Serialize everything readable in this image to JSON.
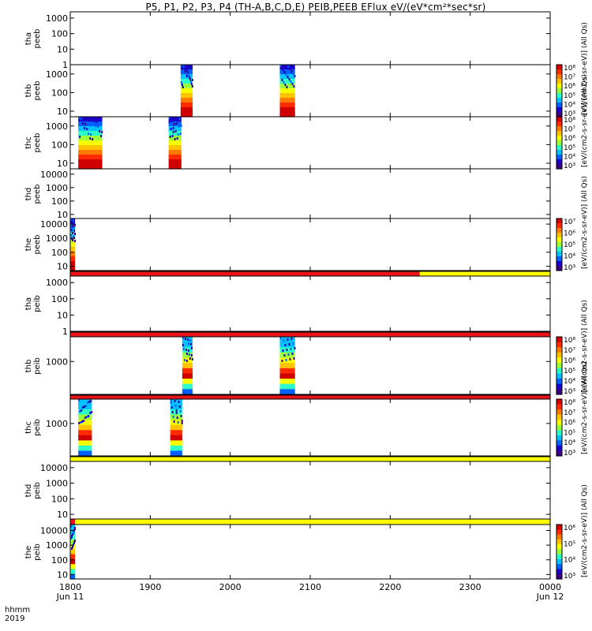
{
  "title": "P5, P1, P2, P3, P4 (TH-A,B,C,D,E) PEIB,PEEB EFlux eV/(eV*cm²*sec*sr)",
  "corner_labels": {
    "line1": "hhmm",
    "line2": "2019"
  },
  "x_axis": {
    "ticks": [
      {
        "label": "1800",
        "sub": "Jun 11",
        "t": 1800
      },
      {
        "label": "1900",
        "sub": "",
        "t": 1900
      },
      {
        "label": "2000",
        "sub": "",
        "t": 2000
      },
      {
        "label": "2100",
        "sub": "",
        "t": 2100
      },
      {
        "label": "2200",
        "sub": "",
        "t": 2200
      },
      {
        "label": "2300",
        "sub": "",
        "t": 2300
      },
      {
        "label": "0000",
        "sub": "Jun 12",
        "t": 2400
      }
    ],
    "range": [
      1800,
      2400
    ]
  },
  "chart_data": {
    "type": "heatmap",
    "panels": [
      {
        "name": "tha_peeb",
        "ylabel": [
          "tha",
          "peeb"
        ],
        "yticks": [
          "1000",
          "100",
          "10",
          "1"
        ],
        "ylog": [
          0,
          3.4
        ],
        "strip": null,
        "blocks": [],
        "colorbar": null
      },
      {
        "name": "thb_peeb",
        "ylabel": [
          "thb",
          "peeb"
        ],
        "yticks": [
          "1000",
          "100",
          "10"
        ],
        "ylog": [
          0.7,
          3.5
        ],
        "strip": null,
        "blocks": [
          {
            "t0": 1938,
            "t1": 1953
          },
          {
            "t0": 2062,
            "t1": 2081
          }
        ],
        "colorbar": {
          "ticks": [
            "10⁸",
            "10⁷",
            "10⁶",
            "10⁵",
            "10⁴",
            "10³"
          ],
          "label": "[eV/(cm2-s-sr-eV)] (All Qs)"
        }
      },
      {
        "name": "thc_peeb",
        "ylabel": [
          "thc",
          "peeb"
        ],
        "yticks": [
          "1000",
          "100",
          "10"
        ],
        "ylog": [
          0.7,
          3.5
        ],
        "strip": null,
        "blocks": [
          {
            "t0": 1810,
            "t1": 1840
          },
          {
            "t0": 1923,
            "t1": 1939
          }
        ],
        "colorbar": {
          "ticks": [
            "10⁸",
            "10⁷",
            "10⁶",
            "10⁵",
            "10⁴",
            "10³"
          ],
          "label": "[eV/(cm2-s-sr-eV)] (All Qs)"
        }
      },
      {
        "name": "thd_peeb",
        "ylabel": [
          "thd",
          "peeb"
        ],
        "yticks": [
          "10000",
          "1000",
          "100",
          "10"
        ],
        "ylog": [
          0.7,
          4.4
        ],
        "strip": null,
        "blocks": [],
        "colorbar": null
      },
      {
        "name": "the_peeb",
        "ylabel": [
          "the",
          "peeb"
        ],
        "yticks": [
          "10000",
          "1000",
          "100",
          "10"
        ],
        "ylog": [
          0.7,
          4.4
        ],
        "strip": null,
        "blocks": [
          {
            "t0": 1800,
            "t1": 1806
          }
        ],
        "colorbar": {
          "ticks": [
            "10⁷",
            "10⁶",
            "10⁵",
            "10⁴",
            "10³"
          ],
          "label": "[eV/(cm2-s-sr-eV)] (All Qs)"
        }
      },
      {
        "name": "tha_peib",
        "ylabel": [
          "tha",
          "peib"
        ],
        "yticks": [
          "1000",
          "100",
          "10",
          "1"
        ],
        "ylog": [
          0,
          3.4
        ],
        "strip": {
          "segments": [
            {
              "t0": 1800,
              "t1": 2237,
              "color": "#e8141a"
            },
            {
              "t0": 2237,
              "t1": 2400,
              "color": "#ffff00"
            }
          ]
        },
        "blocks": [],
        "colorbar": null
      },
      {
        "name": "thb_peib",
        "ylabel": [
          "thb",
          "peib"
        ],
        "yticks": [
          "1000"
        ],
        "ylog": [
          2.2,
          3.6
        ],
        "strip": {
          "segments": [
            {
              "t0": 1800,
              "t1": 2400,
              "color": "#e8141a"
            }
          ]
        },
        "blocks": [
          {
            "t0": 1940,
            "t1": 1953
          },
          {
            "t0": 2062,
            "t1": 2081
          }
        ],
        "colorbar": {
          "ticks": [
            "10⁸",
            "10⁷",
            "10⁶",
            "10⁵",
            "10⁴",
            "10³"
          ],
          "label": "[eV/(cm2-s-sr-eV)] (All Qs)"
        }
      },
      {
        "name": "thc_peib",
        "ylabel": [
          "thc",
          "peib"
        ],
        "yticks": [
          "1000"
        ],
        "ylog": [
          2.2,
          3.6
        ],
        "strip": {
          "segments": [
            {
              "t0": 1800,
              "t1": 2400,
              "color": "#e8141a"
            }
          ]
        },
        "blocks": [
          {
            "t0": 1810,
            "t1": 1827
          },
          {
            "t0": 1925,
            "t1": 1940
          }
        ],
        "colorbar": {
          "ticks": [
            "10⁸",
            "10⁷",
            "10⁶",
            "10⁵",
            "10⁴",
            "10³"
          ],
          "label": "[eV/(cm2-s-sr-eV)] (All Qs)"
        }
      },
      {
        "name": "thd_peib",
        "ylabel": [
          "thd",
          "peib"
        ],
        "yticks": [
          "10000",
          "1000",
          "100",
          "10"
        ],
        "ylog": [
          0.7,
          4.4
        ],
        "strip": {
          "segments": [
            {
              "t0": 1800,
              "t1": 2400,
              "color": "#ffff00"
            }
          ]
        },
        "blocks": [],
        "colorbar": null
      },
      {
        "name": "the_peib",
        "ylabel": [
          "the",
          "peib"
        ],
        "yticks": [
          "10000",
          "1000",
          "100",
          "10"
        ],
        "ylog": [
          0.7,
          4.4
        ],
        "strip": {
          "segments": [
            {
              "t0": 1800,
              "t1": 1806,
              "color": "#e8141a"
            },
            {
              "t0": 1806,
              "t1": 2400,
              "color": "#ffff00"
            }
          ]
        },
        "blocks": [
          {
            "t0": 1800,
            "t1": 1806
          }
        ],
        "colorbar": {
          "ticks": [
            "10⁶",
            "10⁵",
            "10⁴",
            "10³"
          ],
          "label": "[eV/(cm2-s-sr-eV)] (All Qs)"
        }
      }
    ]
  }
}
